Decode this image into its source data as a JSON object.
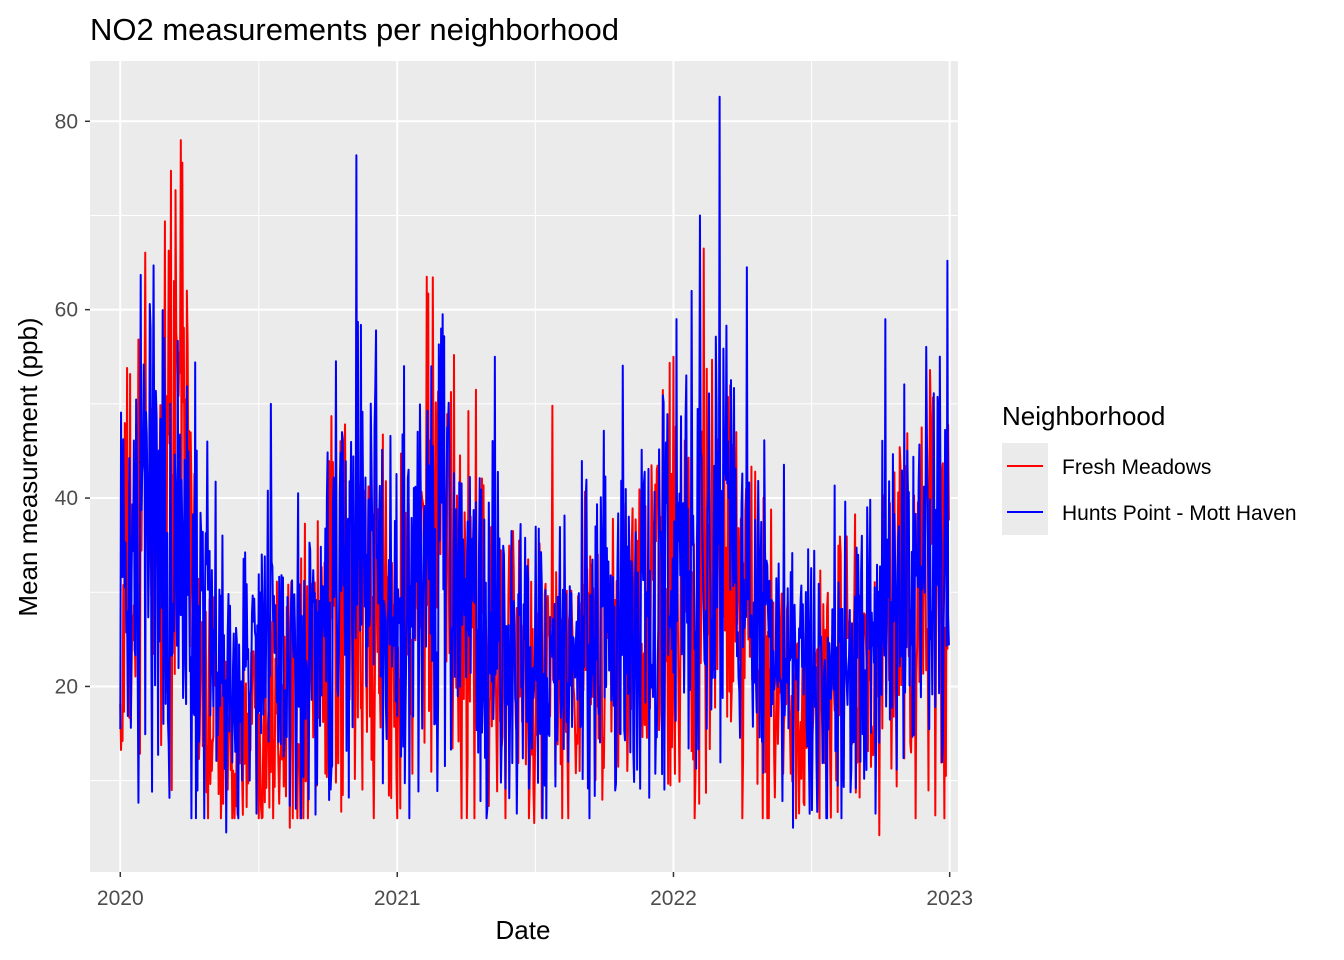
{
  "chart_data": {
    "type": "line",
    "title": "NO2 measurements per neighborhood",
    "xlabel": "Date",
    "ylabel": "Mean measurement (ppb)",
    "x_ticks": [
      "2020",
      "2021",
      "2022",
      "2023"
    ],
    "y_ticks": [
      20,
      40,
      60,
      80
    ],
    "xlim": [
      "2019-11-22",
      "2023-01-12"
    ],
    "ylim": [
      0.3,
      86.4
    ],
    "grid": true,
    "legend": {
      "title": "Neighborhood",
      "position": "right"
    },
    "x_start": "2020-01-01",
    "x_end": "2022-12-31",
    "series": [
      {
        "name": "Fresh Meadows",
        "color": "#ff0000",
        "anchors": [
          [
            "2020-01-01",
            16
          ],
          [
            "2020-01-08",
            32
          ],
          [
            "2020-01-20",
            28
          ],
          [
            "2020-02-03",
            41
          ],
          [
            "2020-02-20",
            36
          ],
          [
            "2020-03-05",
            48
          ],
          [
            "2020-03-25",
            53
          ],
          [
            "2020-04-12",
            22
          ],
          [
            "2020-05-05",
            18
          ],
          [
            "2020-06-01",
            12
          ],
          [
            "2020-07-01",
            18
          ],
          [
            "2020-08-01",
            20
          ],
          [
            "2020-09-01",
            22
          ],
          [
            "2020-10-01",
            23
          ],
          [
            "2020-11-05",
            28
          ],
          [
            "2020-12-01",
            26
          ],
          [
            "2021-01-01",
            26
          ],
          [
            "2021-02-01",
            30
          ],
          [
            "2021-02-15",
            38
          ],
          [
            "2021-03-15",
            30
          ],
          [
            "2021-04-15",
            25
          ],
          [
            "2021-05-15",
            22
          ],
          [
            "2021-06-15",
            20
          ],
          [
            "2021-07-10",
            22
          ],
          [
            "2021-08-01",
            20
          ],
          [
            "2021-09-01",
            21
          ],
          [
            "2021-10-01",
            24
          ],
          [
            "2021-11-15",
            27
          ],
          [
            "2022-01-01",
            29
          ],
          [
            "2022-02-15",
            32
          ],
          [
            "2022-03-15",
            30
          ],
          [
            "2022-04-15",
            25
          ],
          [
            "2022-05-15",
            22
          ],
          [
            "2022-06-15",
            20
          ],
          [
            "2022-07-15",
            19
          ],
          [
            "2022-08-15",
            21
          ],
          [
            "2022-09-15",
            22
          ],
          [
            "2022-10-15",
            25
          ],
          [
            "2022-11-15",
            29
          ],
          [
            "2022-12-31",
            32
          ]
        ],
        "spikes": [
          [
            "2020-01-03",
            15.8
          ],
          [
            "2020-03-20",
            53.3
          ],
          [
            "2020-05-13",
            6.0
          ],
          [
            "2020-08-12",
            5.0
          ],
          [
            "2020-10-06",
            48.7
          ],
          [
            "2021-01-01",
            6.0
          ],
          [
            "2021-02-09",
            63.5
          ],
          [
            "2021-04-15",
            51.5
          ],
          [
            "2021-07-01",
            5.5
          ],
          [
            "2021-07-25",
            49.8
          ],
          [
            "2021-12-10",
            43.0
          ],
          [
            "2022-02-10",
            66.5
          ],
          [
            "2022-03-25",
            47.0
          ],
          [
            "2022-09-30",
            4.2
          ],
          [
            "2022-11-25",
            47.5
          ],
          [
            "2022-12-27",
            10.5
          ]
        ]
      },
      {
        "name": "Hunts Point - Mott Haven",
        "color": "#0000ff",
        "anchors": [
          [
            "2020-01-01",
            30
          ],
          [
            "2020-01-20",
            34
          ],
          [
            "2020-02-05",
            40
          ],
          [
            "2020-03-01",
            38
          ],
          [
            "2020-04-01",
            30
          ],
          [
            "2020-05-01",
            24
          ],
          [
            "2020-06-01",
            20
          ],
          [
            "2020-07-01",
            22
          ],
          [
            "2020-08-01",
            23
          ],
          [
            "2020-09-01",
            25
          ],
          [
            "2020-10-01",
            27
          ],
          [
            "2020-11-01",
            33
          ],
          [
            "2020-12-01",
            32
          ],
          [
            "2021-01-01",
            30
          ],
          [
            "2021-02-15",
            36
          ],
          [
            "2021-03-15",
            32
          ],
          [
            "2021-04-15",
            27
          ],
          [
            "2021-05-15",
            24
          ],
          [
            "2021-06-15",
            21
          ],
          [
            "2021-07-15",
            22
          ],
          [
            "2021-08-15",
            22
          ],
          [
            "2021-09-15",
            24
          ],
          [
            "2021-10-15",
            27
          ],
          [
            "2021-11-15",
            30
          ],
          [
            "2021-12-15",
            30
          ],
          [
            "2022-01-15",
            33
          ],
          [
            "2022-02-15",
            38
          ],
          [
            "2022-03-15",
            36
          ],
          [
            "2022-04-15",
            29
          ],
          [
            "2022-05-15",
            25
          ],
          [
            "2022-06-15",
            22
          ],
          [
            "2022-07-15",
            21
          ],
          [
            "2022-08-15",
            23
          ],
          [
            "2022-09-15",
            24
          ],
          [
            "2022-10-15",
            28
          ],
          [
            "2022-11-15",
            32
          ],
          [
            "2022-12-31",
            40
          ]
        ],
        "spikes": [
          [
            "2020-01-28",
            63.7
          ],
          [
            "2020-02-28",
            57.0
          ],
          [
            "2020-04-25",
            46.0
          ],
          [
            "2020-05-20",
            4.5
          ],
          [
            "2020-07-18",
            50.0
          ],
          [
            "2020-10-20",
            47.0
          ],
          [
            "2020-11-08",
            76.4
          ],
          [
            "2021-01-10",
            54.0
          ],
          [
            "2021-02-28",
            58.0
          ],
          [
            "2021-05-10",
            55.0
          ],
          [
            "2021-06-08",
            6.5
          ],
          [
            "2022-01-05",
            59.0
          ],
          [
            "2022-01-25",
            62.0
          ],
          [
            "2022-02-05",
            70.0
          ],
          [
            "2022-03-03",
            82.6
          ],
          [
            "2022-04-08",
            64.5
          ],
          [
            "2022-06-08",
            5.0
          ],
          [
            "2022-09-05",
            12.0
          ],
          [
            "2022-09-25",
            6.5
          ],
          [
            "2022-10-08",
            59.0
          ],
          [
            "2022-12-29",
            65.2
          ]
        ]
      }
    ]
  }
}
